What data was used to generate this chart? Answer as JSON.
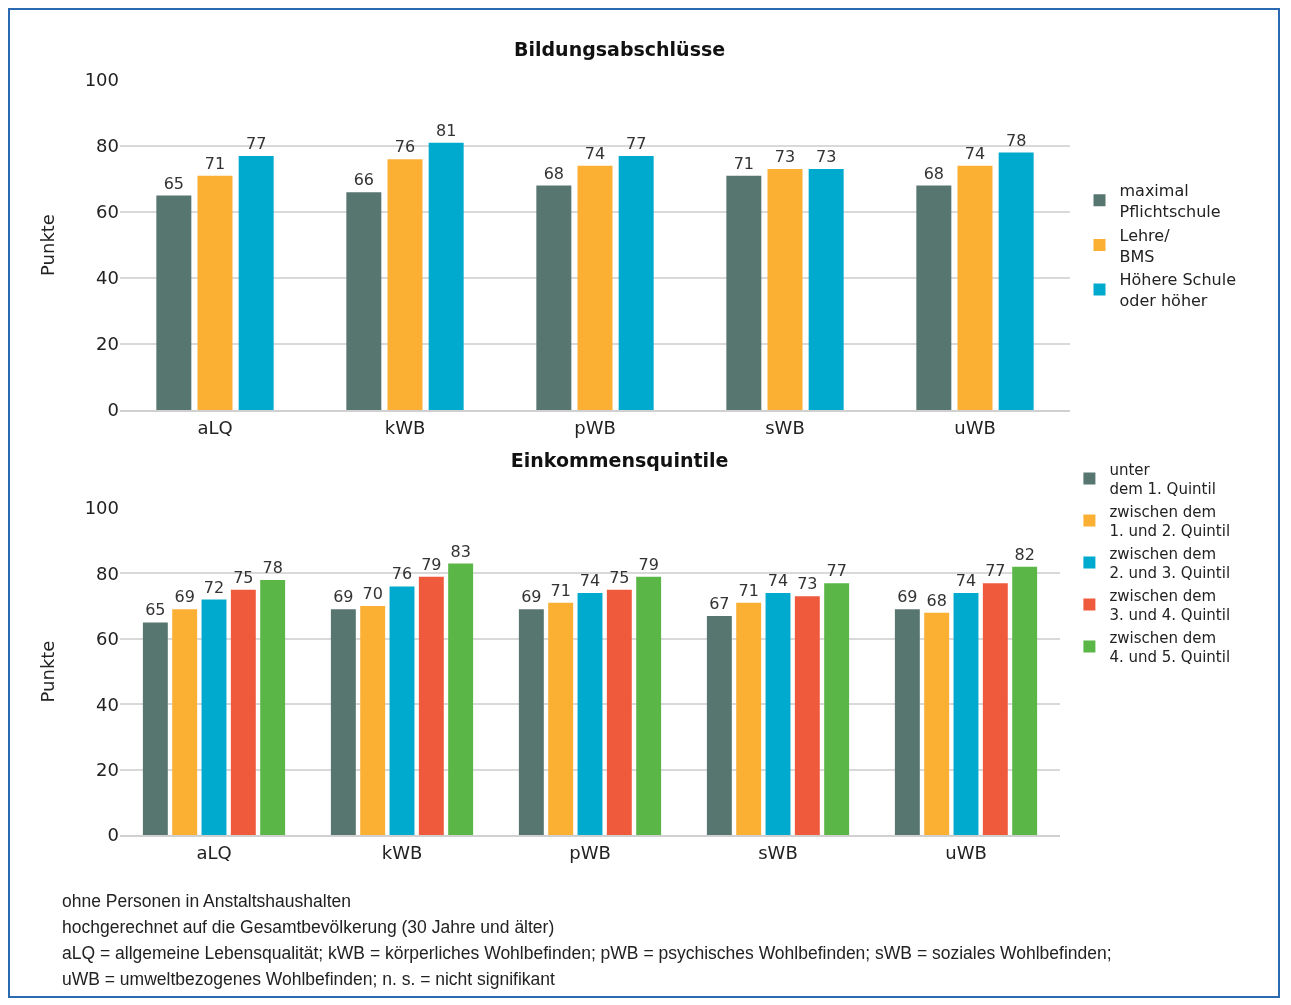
{
  "chart_data": [
    {
      "type": "bar",
      "title": "Bildungsabschlüsse",
      "ylabel": "Punkte",
      "categories": [
        "aLQ",
        "kWB",
        "pWB",
        "sWB",
        "uWB"
      ],
      "series": [
        {
          "name": "maximal\nPflichtschule",
          "color": "#587670",
          "values": [
            65,
            66,
            68,
            71,
            68
          ]
        },
        {
          "name": "Lehre/\nBMS",
          "color": "#fbb034",
          "values": [
            71,
            76,
            74,
            73,
            74
          ]
        },
        {
          "name": "Höhere Schule\noder höher",
          "color": "#00a9ce",
          "values": [
            77,
            81,
            77,
            73,
            78
          ]
        }
      ],
      "ylim": [
        0,
        100
      ],
      "yticks": [
        0,
        20,
        40,
        60,
        80,
        100
      ],
      "grid": "y",
      "legend": "right",
      "data_labels": true
    },
    {
      "type": "bar",
      "title": "Einkommensquintile",
      "ylabel": "Punkte",
      "categories": [
        "aLQ",
        "kWB",
        "pWB",
        "sWB",
        "uWB"
      ],
      "series": [
        {
          "name": "unter\ndem 1. Quintil",
          "color": "#587670",
          "values": [
            65,
            69,
            69,
            67,
            69
          ]
        },
        {
          "name": "zwischen dem\n1. und 2. Quintil",
          "color": "#fbb034",
          "values": [
            69,
            70,
            71,
            71,
            68
          ]
        },
        {
          "name": "zwischen dem\n2. und 3. Quintil",
          "color": "#00a9ce",
          "values": [
            72,
            76,
            74,
            74,
            74
          ]
        },
        {
          "name": "zwischen dem\n3. und 4. Quintil",
          "color": "#f05a3c",
          "values": [
            75,
            79,
            75,
            73,
            77
          ]
        },
        {
          "name": "zwischen dem\n4. und 5. Quintil",
          "color": "#5ab646",
          "values": [
            78,
            83,
            79,
            77,
            82
          ]
        }
      ],
      "ylim": [
        0,
        100
      ],
      "yticks": [
        0,
        20,
        40,
        60,
        80,
        100
      ],
      "grid": "y",
      "legend": "right",
      "data_labels": true,
      "annotations": [
        "ohne Personen in Anstaltshaushalten",
        "hochgerechnet auf die Gesamtbevölkerung (30 Jahre und älter)",
        "aLQ = allgemeine Lebensqualität; kWB = körperliches Wohlbefinden; pWB = psychisches Wohlbefinden; sWB = soziales Wohlbefinden;",
        "uWB = umweltbezogenes Wohlbefinden; n. s. = nicht signifikant"
      ]
    }
  ]
}
